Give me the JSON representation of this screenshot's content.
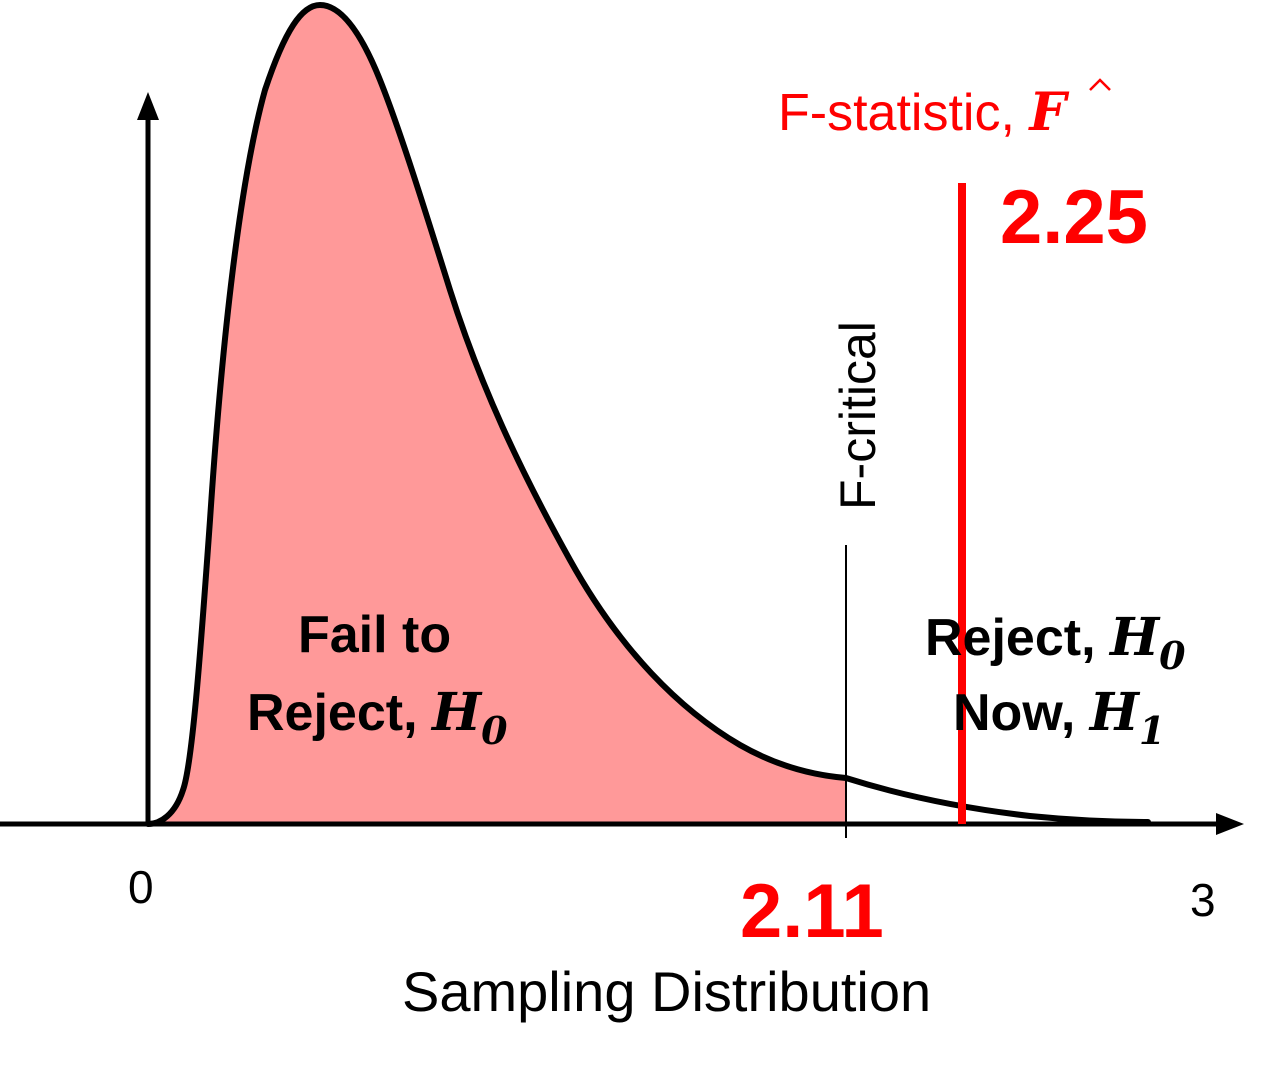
{
  "colors": {
    "fill_region": "#ff9999",
    "accent": "#ff0000",
    "ink": "#000000"
  },
  "axis": {
    "origin_label": "0",
    "max_label": "3",
    "xlabel": "Sampling Distribution"
  },
  "critical": {
    "label": "F-critical",
    "value_label": "2.11",
    "value": 2.11
  },
  "statistic": {
    "label": "F-statistic, ",
    "symbol": "F",
    "value_label": "2.25",
    "value": 2.25
  },
  "regions": {
    "fail": {
      "line1": "Fail to",
      "line2": "Reject, ",
      "hyp": "H",
      "sub": "0"
    },
    "reject": {
      "line1": "Reject, ",
      "hyp1": "H",
      "sub1": "0",
      "line2": "Now, ",
      "hyp2": "H",
      "sub2": "1"
    }
  }
}
